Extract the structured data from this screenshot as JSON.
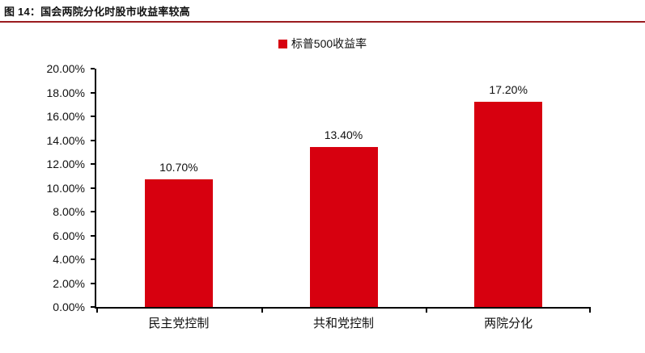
{
  "header": {
    "title": "图 14：国会两院分化时股市收益率较高"
  },
  "legend": {
    "label": "标普500收益率"
  },
  "chart_data": {
    "type": "bar",
    "title": "图 14：国会两院分化时股市收益率较高",
    "categories": [
      "民主党控制",
      "共和党控制",
      "两院分化"
    ],
    "series": [
      {
        "name": "标普500收益率",
        "values": [
          10.7,
          13.4,
          17.2
        ]
      }
    ],
    "data_labels": [
      "10.70%",
      "13.40%",
      "17.20%"
    ],
    "xlabel": "",
    "ylabel": "",
    "ylim": [
      0,
      20
    ],
    "ytick_step": 2,
    "ytick_labels": [
      "0.00%",
      "2.00%",
      "4.00%",
      "6.00%",
      "8.00%",
      "10.00%",
      "12.00%",
      "14.00%",
      "16.00%",
      "18.00%",
      "20.00%"
    ],
    "grid": false,
    "legend_position": "top-center",
    "bar_color": "#d7000f"
  },
  "colors": {
    "bar_red": "#d7000f",
    "title_underline_red": "#9b1b1f",
    "axis_black": "#000000"
  }
}
